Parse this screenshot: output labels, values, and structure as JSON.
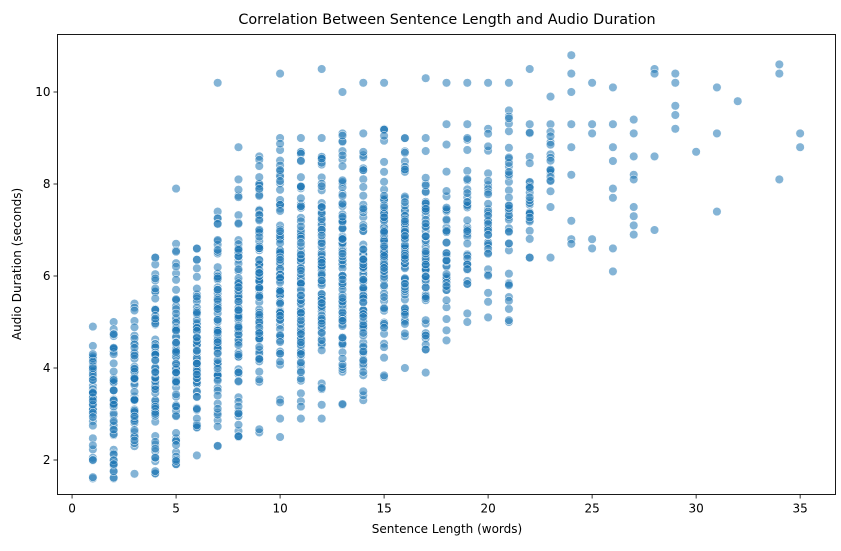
{
  "chart_data": {
    "type": "scatter",
    "title": "Correlation Between Sentence Length and Audio Duration",
    "xlabel": "Sentence Length (words)",
    "ylabel": "Audio Duration (seconds)",
    "xlim": [
      -0.7,
      36.7
    ],
    "ylim": [
      1.25,
      11.25
    ],
    "xticks": [
      0,
      5,
      10,
      15,
      20,
      25,
      30,
      35
    ],
    "yticks": [
      2,
      4,
      6,
      8,
      10
    ],
    "grid": false,
    "legend": "none",
    "marker_color": "#1f77b4",
    "marker_opacity": 0.55,
    "column_ranges": [
      {
        "x": 1,
        "ymin": 1.6,
        "ymax": 4.9
      },
      {
        "x": 2,
        "ymin": 1.6,
        "ymax": 5.0
      },
      {
        "x": 3,
        "ymin": 1.7,
        "ymax": 5.4
      },
      {
        "x": 4,
        "ymin": 1.7,
        "ymax": 6.4
      },
      {
        "x": 5,
        "ymin": 1.9,
        "ymax": 6.7
      },
      {
        "x": 6,
        "ymin": 2.1,
        "ymax": 6.6
      },
      {
        "x": 7,
        "ymin": 2.3,
        "ymax": 7.4
      },
      {
        "x": 8,
        "ymin": 2.5,
        "ymax": 8.1
      },
      {
        "x": 9,
        "ymin": 2.6,
        "ymax": 8.6
      },
      {
        "x": 10,
        "ymin": 2.9,
        "ymax": 9.0
      },
      {
        "x": 11,
        "ymin": 2.9,
        "ymax": 9.0
      },
      {
        "x": 12,
        "ymin": 3.2,
        "ymax": 9.0
      },
      {
        "x": 13,
        "ymin": 3.2,
        "ymax": 9.1
      },
      {
        "x": 14,
        "ymin": 3.3,
        "ymax": 9.1
      },
      {
        "x": 15,
        "ymin": 3.8,
        "ymax": 9.2
      },
      {
        "x": 16,
        "ymin": 4.0,
        "ymax": 9.0
      },
      {
        "x": 17,
        "ymin": 4.4,
        "ymax": 9.0
      },
      {
        "x": 18,
        "ymin": 4.6,
        "ymax": 9.3
      },
      {
        "x": 19,
        "ymin": 5.0,
        "ymax": 9.3
      },
      {
        "x": 20,
        "ymin": 5.1,
        "ymax": 9.2
      },
      {
        "x": 21,
        "ymin": 5.0,
        "ymax": 9.6
      },
      {
        "x": 22,
        "ymin": 6.4,
        "ymax": 9.3
      },
      {
        "x": 23,
        "ymin": 7.5,
        "ymax": 9.3
      }
    ],
    "sparse_points": [
      {
        "x": 4,
        "y": 6.4
      },
      {
        "x": 5,
        "y": 7.9
      },
      {
        "x": 7,
        "y": 10.2
      },
      {
        "x": 8,
        "y": 8.8
      },
      {
        "x": 10,
        "y": 10.4
      },
      {
        "x": 10,
        "y": 2.5
      },
      {
        "x": 12,
        "y": 10.5
      },
      {
        "x": 12,
        "y": 2.9
      },
      {
        "x": 13,
        "y": 10.0
      },
      {
        "x": 14,
        "y": 10.2
      },
      {
        "x": 15,
        "y": 10.2
      },
      {
        "x": 17,
        "y": 10.3
      },
      {
        "x": 17,
        "y": 3.9
      },
      {
        "x": 18,
        "y": 10.2
      },
      {
        "x": 19,
        "y": 10.2
      },
      {
        "x": 20,
        "y": 10.2
      },
      {
        "x": 21,
        "y": 10.2
      },
      {
        "x": 22,
        "y": 10.5
      },
      {
        "x": 22,
        "y": 6.4
      },
      {
        "x": 23,
        "y": 9.9
      },
      {
        "x": 23,
        "y": 6.4
      },
      {
        "x": 24,
        "y": 10.8
      },
      {
        "x": 24,
        "y": 10.4
      },
      {
        "x": 24,
        "y": 10.0
      },
      {
        "x": 24,
        "y": 9.3
      },
      {
        "x": 24,
        "y": 8.8
      },
      {
        "x": 24,
        "y": 8.2
      },
      {
        "x": 24,
        "y": 7.2
      },
      {
        "x": 24,
        "y": 6.8
      },
      {
        "x": 24,
        "y": 6.7
      },
      {
        "x": 25,
        "y": 10.2
      },
      {
        "x": 25,
        "y": 9.3
      },
      {
        "x": 25,
        "y": 9.1
      },
      {
        "x": 25,
        "y": 6.8
      },
      {
        "x": 25,
        "y": 6.6
      },
      {
        "x": 26,
        "y": 10.1
      },
      {
        "x": 26,
        "y": 9.3
      },
      {
        "x": 26,
        "y": 8.8
      },
      {
        "x": 26,
        "y": 8.5
      },
      {
        "x": 26,
        "y": 7.9
      },
      {
        "x": 26,
        "y": 7.7
      },
      {
        "x": 26,
        "y": 6.6
      },
      {
        "x": 26,
        "y": 6.1
      },
      {
        "x": 27,
        "y": 9.4
      },
      {
        "x": 27,
        "y": 9.1
      },
      {
        "x": 27,
        "y": 8.6
      },
      {
        "x": 27,
        "y": 8.2
      },
      {
        "x": 27,
        "y": 8.1
      },
      {
        "x": 27,
        "y": 7.5
      },
      {
        "x": 27,
        "y": 7.3
      },
      {
        "x": 27,
        "y": 7.1
      },
      {
        "x": 27,
        "y": 6.9
      },
      {
        "x": 28,
        "y": 10.5
      },
      {
        "x": 28,
        "y": 10.4
      },
      {
        "x": 28,
        "y": 8.6
      },
      {
        "x": 28,
        "y": 7.0
      },
      {
        "x": 29,
        "y": 10.4
      },
      {
        "x": 29,
        "y": 10.2
      },
      {
        "x": 29,
        "y": 9.7
      },
      {
        "x": 29,
        "y": 9.5
      },
      {
        "x": 29,
        "y": 9.2
      },
      {
        "x": 30,
        "y": 8.7
      },
      {
        "x": 31,
        "y": 10.1
      },
      {
        "x": 31,
        "y": 9.1
      },
      {
        "x": 31,
        "y": 7.4
      },
      {
        "x": 32,
        "y": 9.8
      },
      {
        "x": 34,
        "y": 10.6
      },
      {
        "x": 34,
        "y": 10.4
      },
      {
        "x": 34,
        "y": 8.1
      },
      {
        "x": 35,
        "y": 9.1
      },
      {
        "x": 35,
        "y": 8.8
      }
    ]
  }
}
